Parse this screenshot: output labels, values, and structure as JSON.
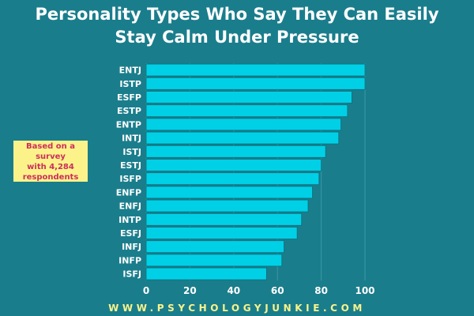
{
  "header": {
    "title_line1": "Personality Types Who Say They Can Easily",
    "title_line2": "Stay Calm Under Pressure"
  },
  "note": {
    "line1": "Based on a survey",
    "line2": "with 4,284",
    "line3": "respondents"
  },
  "footer": {
    "url": "WWW.PSYCHOLOGYJUNKIE.COM"
  },
  "colors": {
    "background": "#1a7d8c",
    "bar": "#00d0e6",
    "bar_border": "#0e6f7c",
    "title": "#ffffff",
    "label": "#ffffff",
    "note_bg": "#fbf38a",
    "note_text": "#cc2d5d",
    "footer": "#fbf38a"
  },
  "chart_data": {
    "type": "bar",
    "orientation": "horizontal",
    "title": "Personality Types Who Say They Can Easily Stay Calm Under Pressure",
    "categories": [
      "ENTJ",
      "ISTP",
      "ESFP",
      "ESTP",
      "ENTP",
      "INTJ",
      "ISTJ",
      "ESTJ",
      "ISFP",
      "ENFP",
      "ENFJ",
      "INTP",
      "ESFJ",
      "INFJ",
      "INFP",
      "ISFJ"
    ],
    "values": [
      100,
      100,
      94,
      92,
      89,
      88,
      82,
      80,
      79,
      76,
      74,
      71,
      69,
      63,
      62,
      55
    ],
    "xlim": [
      0,
      100
    ],
    "x_ticks": [
      0,
      20,
      40,
      60,
      80,
      100
    ],
    "grid": true
  }
}
